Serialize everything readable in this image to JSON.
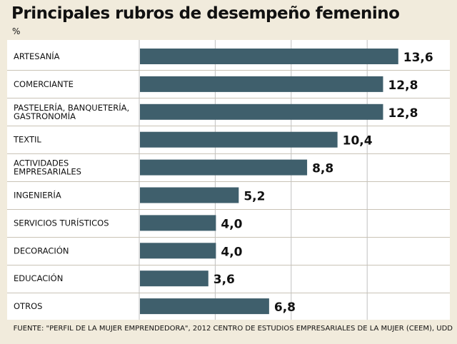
{
  "title": "Principales rubros de desempeño femenino",
  "unit": "%",
  "source": "FUENTE: \"PERFIL DE LA MUJER EMPRENDEDORA\", 2012 CENTRO DE ESTUDIOS EMPRESARIALES DE LA MUJER (CEEM), UDD",
  "colors": {
    "bar": "#3f5f6c",
    "background": "#f1ebdc",
    "panel": "#ffffff",
    "separator": "#c9c3b6",
    "grid": "#c0c0c0",
    "text": "#111111"
  },
  "chart_data": {
    "type": "bar",
    "orientation": "horizontal",
    "title": "Principales rubros de desempeño femenino",
    "unit": "%",
    "categories": [
      [
        "ARTESANÍA"
      ],
      [
        "COMERCIANTE"
      ],
      [
        "PASTELERÍA, BANQUETERÍA,",
        "GASTRONOMÍA"
      ],
      [
        "TEXTIL"
      ],
      [
        "ACTIVIDADES",
        "EMPRESARIALES"
      ],
      [
        "INGENIERÍA"
      ],
      [
        "SERVICIOS TURÍSTICOS"
      ],
      [
        "DECORACIÓN"
      ],
      [
        "EDUCACIÓN"
      ],
      [
        "OTROS"
      ]
    ],
    "values": [
      13.6,
      12.8,
      12.8,
      10.4,
      8.8,
      5.2,
      4.0,
      4.0,
      3.6,
      6.8
    ],
    "value_labels": [
      "13,6",
      "12,8",
      "12,8",
      "10,4",
      "8,8",
      "5,2",
      "4,0",
      "4,0",
      "3,6",
      "6,8"
    ],
    "xlim": [
      0,
      16
    ],
    "grid": true
  }
}
